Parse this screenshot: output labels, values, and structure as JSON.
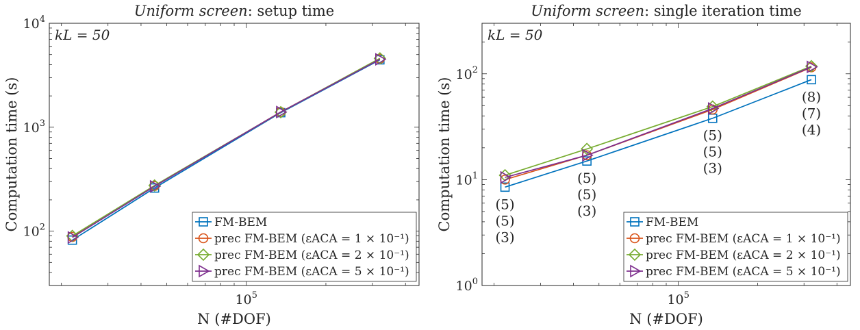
{
  "colors": {
    "fm_bem": "#0072BD",
    "eps1": "#D95319",
    "eps2": "#77AC30",
    "eps5": "#7E2F8E",
    "axis": "#262626"
  },
  "panels": [
    {
      "title_italic": "Uniform screen",
      "title_rest": ": setup time",
      "kl_text": "kL = 50",
      "xlabel": "N (#DOF)",
      "ylabel": "Computation time (s)"
    },
    {
      "title_italic": "Uniform screen",
      "title_rest": ": single iteration time",
      "kl_text": "kL = 50",
      "xlabel": "N (#DOF)",
      "ylabel": "Computation time (s)"
    }
  ],
  "legend": [
    "FM-BEM",
    "prec FM-BEM (εACA = 1 × 10⁻¹)",
    "prec FM-BEM (εACA = 2 × 10⁻¹)",
    "prec FM-BEM (εACA = 5 × 10⁻¹)"
  ],
  "chart_data": [
    {
      "type": "line",
      "title": "Uniform screen: setup time",
      "xlabel": "N (#DOF)",
      "ylabel": "Computation time (s)",
      "xscale": "log",
      "yscale": "log",
      "xlim": [
        18000,
        450000
      ],
      "ylim": [
        30,
        10000
      ],
      "x_ticks": [
        "10^5"
      ],
      "y_ticks": [
        "10^2",
        "10^3",
        "10^4"
      ],
      "legend_position": "bottom-right",
      "x": [
        22000,
        45000,
        135000,
        320000
      ],
      "series": [
        {
          "name": "FM-BEM",
          "marker": "square",
          "values": [
            82,
            260,
            1380,
            4450
          ]
        },
        {
          "name": "prec FM-BEM (εACA = 1 × 10⁻¹)",
          "marker": "circle",
          "values": [
            88,
            272,
            1400,
            4550
          ]
        },
        {
          "name": "prec FM-BEM (εACA = 2 × 10⁻¹)",
          "marker": "diamond",
          "values": [
            90,
            275,
            1395,
            4600
          ]
        },
        {
          "name": "prec FM-BEM (εACA = 5 × 10⁻¹)",
          "marker": "triangle-right",
          "values": [
            87,
            270,
            1400,
            4500
          ]
        }
      ]
    },
    {
      "type": "line",
      "title": "Uniform screen: single iteration time",
      "xlabel": "N (#DOF)",
      "ylabel": "Computation time (s)",
      "xscale": "log",
      "yscale": "log",
      "xlim": [
        18000,
        450000
      ],
      "ylim": [
        1,
        300
      ],
      "x_ticks": [
        "10^5"
      ],
      "y_ticks": [
        "10^0",
        "10^1",
        "10^2"
      ],
      "legend_position": "bottom-right",
      "x": [
        22000,
        45000,
        135000,
        320000
      ],
      "series": [
        {
          "name": "FM-BEM",
          "marker": "square",
          "values": [
            8.5,
            15,
            38,
            88
          ]
        },
        {
          "name": "prec FM-BEM (εACA = 1 × 10⁻¹)",
          "marker": "circle",
          "values": [
            10,
            17,
            46,
            115
          ]
        },
        {
          "name": "prec FM-BEM (εACA = 2 × 10⁻¹)",
          "marker": "diamond",
          "values": [
            11,
            19.5,
            49,
            118
          ]
        },
        {
          "name": "prec FM-BEM (εACA = 5 × 10⁻¹)",
          "marker": "triangle-right",
          "values": [
            10.5,
            17,
            47,
            116
          ]
        }
      ],
      "annotations": [
        {
          "x": 22000,
          "labels": [
            "(5)",
            "(5)",
            "(3)"
          ]
        },
        {
          "x": 45000,
          "labels": [
            "(5)",
            "(5)",
            "(3)"
          ]
        },
        {
          "x": 135000,
          "labels": [
            "(5)",
            "(5)",
            "(3)"
          ]
        },
        {
          "x": 320000,
          "labels": [
            "(8)",
            "(7)",
            "(4)"
          ]
        }
      ]
    }
  ]
}
